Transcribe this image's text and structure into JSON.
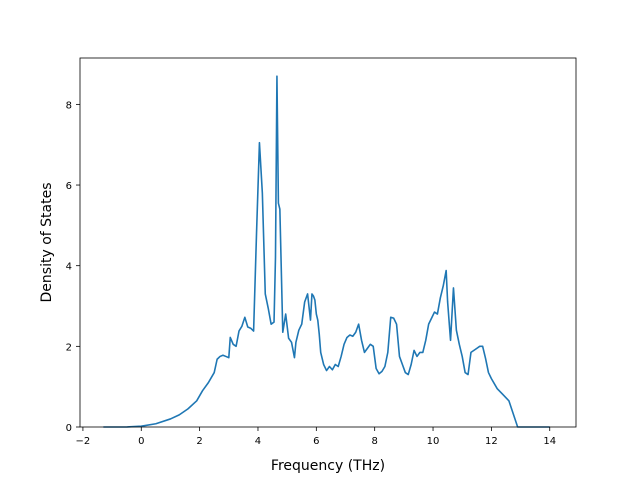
{
  "chart_data": {
    "type": "line",
    "title": "",
    "xlabel": "Frequency (THz)",
    "ylabel": "Density of States",
    "xlim": [
      -2.1,
      14.9
    ],
    "ylim": [
      0,
      9.15
    ],
    "grid": false,
    "legend": "none",
    "xticks": [
      -2,
      0,
      2,
      4,
      6,
      8,
      10,
      12,
      14
    ],
    "xtick_labels": [
      "−2",
      "0",
      "2",
      "4",
      "6",
      "8",
      "10",
      "12",
      "14"
    ],
    "yticks": [
      0,
      2,
      4,
      6,
      8
    ],
    "ytick_labels": [
      "0",
      "2",
      "4",
      "6",
      "8"
    ],
    "colors": {
      "line": "#1f77b4",
      "axes": "#000000",
      "background": "#ffffff"
    },
    "series": [
      {
        "x": [
          -1.3,
          -0.5,
          0.0,
          0.5,
          1.0,
          1.3,
          1.6,
          1.9,
          2.1,
          2.3,
          2.5,
          2.6,
          2.7,
          2.8,
          2.9,
          3.0,
          3.05,
          3.15,
          3.25,
          3.35,
          3.45,
          3.55,
          3.65,
          3.75,
          3.85,
          3.95,
          4.05,
          4.15,
          4.25,
          4.35,
          4.45,
          4.55,
          4.6,
          4.65,
          4.7,
          4.75,
          4.85,
          4.95,
          5.05,
          5.15,
          5.25,
          5.3,
          5.4,
          5.5,
          5.6,
          5.7,
          5.8,
          5.85,
          5.9,
          5.95,
          6.0,
          6.05,
          6.1,
          6.15,
          6.25,
          6.35,
          6.45,
          6.55,
          6.65,
          6.75,
          6.85,
          6.95,
          7.05,
          7.15,
          7.25,
          7.35,
          7.45,
          7.55,
          7.65,
          7.75,
          7.85,
          7.95,
          8.05,
          8.15,
          8.25,
          8.35,
          8.45,
          8.55,
          8.65,
          8.75,
          8.85,
          8.95,
          9.05,
          9.15,
          9.25,
          9.35,
          9.45,
          9.55,
          9.65,
          9.75,
          9.85,
          9.95,
          10.05,
          10.15,
          10.25,
          10.35,
          10.45,
          10.5,
          10.6,
          10.7,
          10.8,
          10.9,
          11.0,
          11.1,
          11.2,
          11.3,
          11.4,
          11.5,
          11.6,
          11.7,
          11.8,
          11.9,
          12.0,
          12.2,
          12.4,
          12.6,
          12.9,
          13.2,
          14.0
        ],
        "y": [
          0,
          0,
          0.02,
          0.08,
          0.2,
          0.3,
          0.45,
          0.65,
          0.9,
          1.1,
          1.35,
          1.68,
          1.75,
          1.78,
          1.75,
          1.72,
          2.22,
          2.05,
          2.0,
          2.38,
          2.5,
          2.72,
          2.48,
          2.45,
          2.38,
          4.8,
          7.05,
          5.8,
          3.3,
          2.95,
          2.55,
          2.6,
          4.2,
          8.7,
          5.55,
          5.4,
          2.35,
          2.8,
          2.2,
          2.1,
          1.72,
          2.1,
          2.4,
          2.55,
          3.1,
          3.3,
          2.65,
          3.3,
          3.25,
          3.15,
          2.8,
          2.65,
          2.3,
          1.85,
          1.55,
          1.4,
          1.5,
          1.42,
          1.55,
          1.5,
          1.75,
          2.05,
          2.22,
          2.28,
          2.25,
          2.35,
          2.55,
          2.15,
          1.85,
          1.95,
          2.05,
          2.0,
          1.45,
          1.32,
          1.38,
          1.5,
          1.85,
          2.72,
          2.7,
          2.55,
          1.75,
          1.55,
          1.35,
          1.3,
          1.55,
          1.9,
          1.75,
          1.85,
          1.85,
          2.15,
          2.55,
          2.7,
          2.85,
          2.8,
          3.2,
          3.5,
          3.88,
          3.1,
          2.15,
          3.45,
          2.4,
          2.05,
          1.75,
          1.35,
          1.3,
          1.85,
          1.9,
          1.95,
          2.0,
          2.0,
          1.7,
          1.35,
          1.2,
          0.95,
          0.8,
          0.65,
          0.0,
          0.0,
          0.0
        ]
      }
    ]
  }
}
